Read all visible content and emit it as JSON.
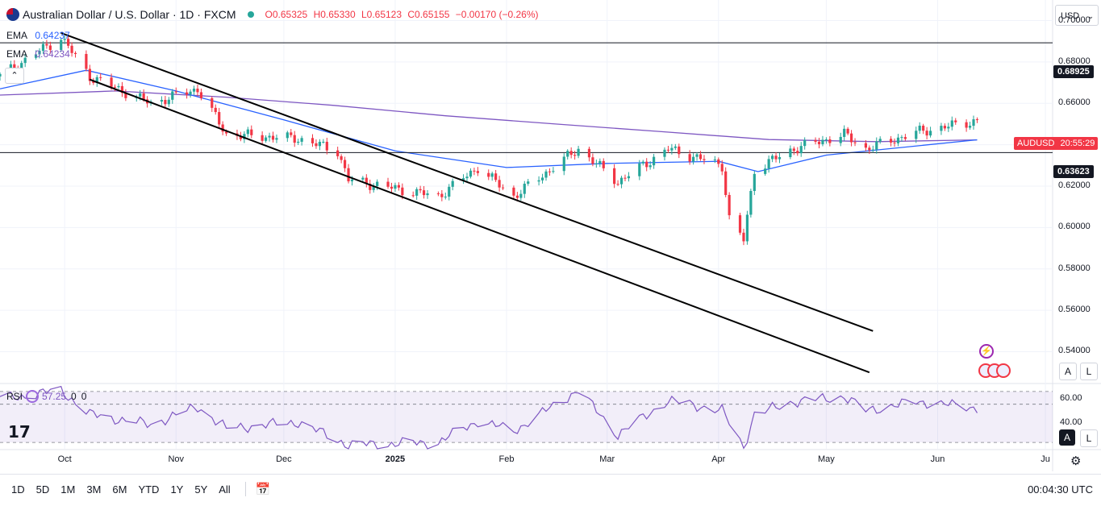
{
  "header": {
    "title": "Australian Dollar / U.S. Dollar · 1D · FXCM",
    "open": "O0.65325",
    "high": "H0.65330",
    "low": "L0.65123",
    "close": "C0.65155",
    "change": "−0.00170 (−0.26%)",
    "status_color": "#26a69a",
    "flag": "aud-usd-flag-icon"
  },
  "ema": [
    {
      "label": "EMA",
      "value": "0.64237",
      "color": "#2962ff"
    },
    {
      "label": "EMA",
      "value": "0.64234",
      "color": "#7e57c2"
    }
  ],
  "collapse_label": "⌃",
  "currency": "USD",
  "price_ticks": [
    "0.70000",
    "0.68000",
    "0.66000",
    "0.64000",
    "0.62000",
    "0.60000",
    "0.58000",
    "0.56000",
    "0.54000"
  ],
  "levels": {
    "upper": "0.68925",
    "lower": "0.63623"
  },
  "current_tag": {
    "symbol": "AUDUSD",
    "timer": "20:55:29"
  },
  "rsi": {
    "label": "RSI",
    "value": "57.25",
    "extra1": "0",
    "extra2": "0",
    "ticks": [
      "60.00",
      "40.00"
    ]
  },
  "x_labels": [
    "Oct",
    "Nov",
    "Dec",
    "2025",
    "Feb",
    "Mar",
    "Apr",
    "May",
    "Jun",
    "Ju"
  ],
  "scale_buttons": {
    "a": "A",
    "l": "L"
  },
  "timeframes": [
    "1D",
    "5D",
    "1M",
    "3M",
    "6M",
    "YTD",
    "1Y",
    "5Y",
    "All"
  ],
  "clock": "00:04:30 UTC",
  "colors": {
    "up": "#26a69a",
    "down": "#f23645",
    "ema_fast": "#2962ff",
    "ema_slow": "#7e57c2",
    "rsi": "#7e57c2"
  },
  "chart_data": {
    "type": "candlestick",
    "title": "Australian Dollar / U.S. Dollar · 1D · FXCM",
    "ylim": [
      0.525,
      0.708
    ],
    "x_range": [
      "2024-09-13",
      "2025-07-03"
    ],
    "x_ticks": [
      {
        "label": "Oct",
        "date": "2024-10-01"
      },
      {
        "label": "Nov",
        "date": "2024-11-01"
      },
      {
        "label": "Dec",
        "date": "2024-12-01"
      },
      {
        "label": "2025",
        "date": "2025-01-01"
      },
      {
        "label": "Feb",
        "date": "2025-02-01"
      },
      {
        "label": "Mar",
        "date": "2025-03-01"
      },
      {
        "label": "Apr",
        "date": "2025-04-01"
      },
      {
        "label": "May",
        "date": "2025-05-01"
      },
      {
        "label": "Jun",
        "date": "2025-06-01"
      },
      {
        "label": "Ju",
        "date": "2025-07-01"
      }
    ],
    "close_anchors": [
      {
        "date": "2024-09-13",
        "close": 0.673
      },
      {
        "date": "2024-09-30",
        "close": 0.692
      },
      {
        "date": "2024-10-08",
        "close": 0.673
      },
      {
        "date": "2024-10-25",
        "close": 0.66
      },
      {
        "date": "2024-11-07",
        "close": 0.667
      },
      {
        "date": "2024-11-15",
        "close": 0.645
      },
      {
        "date": "2024-12-05",
        "close": 0.643
      },
      {
        "date": "2024-12-16",
        "close": 0.637
      },
      {
        "date": "2024-12-19",
        "close": 0.623
      },
      {
        "date": "2025-01-13",
        "close": 0.615
      },
      {
        "date": "2025-01-24",
        "close": 0.629
      },
      {
        "date": "2025-02-03",
        "close": 0.615
      },
      {
        "date": "2025-02-21",
        "close": 0.638
      },
      {
        "date": "2025-03-04",
        "close": 0.622
      },
      {
        "date": "2025-03-18",
        "close": 0.638
      },
      {
        "date": "2025-04-02",
        "close": 0.63
      },
      {
        "date": "2025-04-04",
        "close": 0.604
      },
      {
        "date": "2025-04-08",
        "close": 0.594
      },
      {
        "date": "2025-04-11",
        "close": 0.628
      },
      {
        "date": "2025-04-22",
        "close": 0.638
      },
      {
        "date": "2025-05-06",
        "close": 0.645
      },
      {
        "date": "2025-05-12",
        "close": 0.638
      },
      {
        "date": "2025-05-26",
        "close": 0.646
      },
      {
        "date": "2025-06-12",
        "close": 0.6516
      }
    ],
    "ema_fast": [
      {
        "date": "2024-09-13",
        "value": 0.667
      },
      {
        "date": "2024-10-07",
        "value": 0.676
      },
      {
        "date": "2024-11-01",
        "value": 0.666
      },
      {
        "date": "2024-12-01",
        "value": 0.652
      },
      {
        "date": "2025-01-01",
        "value": 0.637
      },
      {
        "date": "2025-02-01",
        "value": 0.629
      },
      {
        "date": "2025-03-01",
        "value": 0.631
      },
      {
        "date": "2025-04-01",
        "value": 0.632
      },
      {
        "date": "2025-04-12",
        "value": 0.627
      },
      {
        "date": "2025-05-01",
        "value": 0.635
      },
      {
        "date": "2025-06-12",
        "value": 0.6424
      }
    ],
    "ema_slow": [
      {
        "date": "2024-09-13",
        "value": 0.664
      },
      {
        "date": "2024-10-15",
        "value": 0.666
      },
      {
        "date": "2024-11-15",
        "value": 0.663
      },
      {
        "date": "2024-12-15",
        "value": 0.659
      },
      {
        "date": "2025-01-15",
        "value": 0.654
      },
      {
        "date": "2025-02-15",
        "value": 0.65
      },
      {
        "date": "2025-03-15",
        "value": 0.6465
      },
      {
        "date": "2025-04-15",
        "value": 0.6425
      },
      {
        "date": "2025-05-15",
        "value": 0.6415
      },
      {
        "date": "2025-06-12",
        "value": 0.64234
      }
    ],
    "horizontal_levels": [
      0.68925,
      0.63623
    ],
    "trend_lines": [
      {
        "from": {
          "date": "2024-09-30",
          "price": 0.694
        },
        "to": {
          "date": "2025-05-14",
          "price": 0.55
        }
      },
      {
        "from": {
          "date": "2024-10-08",
          "price": 0.6715
        },
        "to": {
          "date": "2025-05-13",
          "price": 0.53
        }
      }
    ],
    "rsi": {
      "ylim": [
        25,
        75
      ],
      "guides": [
        70,
        60,
        30
      ],
      "points": [
        {
          "date": "2024-09-13",
          "value": 64
        },
        {
          "date": "2024-09-30",
          "value": 71
        },
        {
          "date": "2024-10-08",
          "value": 52
        },
        {
          "date": "2024-10-25",
          "value": 44
        },
        {
          "date": "2024-11-07",
          "value": 58
        },
        {
          "date": "2024-11-15",
          "value": 41
        },
        {
          "date": "2024-12-05",
          "value": 46
        },
        {
          "date": "2024-12-19",
          "value": 28
        },
        {
          "date": "2025-01-13",
          "value": 30
        },
        {
          "date": "2025-01-24",
          "value": 47
        },
        {
          "date": "2025-02-03",
          "value": 39
        },
        {
          "date": "2025-02-21",
          "value": 71
        },
        {
          "date": "2025-03-04",
          "value": 36
        },
        {
          "date": "2025-03-18",
          "value": 63
        },
        {
          "date": "2025-04-02",
          "value": 55
        },
        {
          "date": "2025-04-08",
          "value": 26
        },
        {
          "date": "2025-04-11",
          "value": 52
        },
        {
          "date": "2025-04-22",
          "value": 62
        },
        {
          "date": "2025-05-06",
          "value": 66
        },
        {
          "date": "2025-05-12",
          "value": 55
        },
        {
          "date": "2025-05-26",
          "value": 62
        },
        {
          "date": "2025-06-12",
          "value": 57.25
        }
      ]
    }
  }
}
